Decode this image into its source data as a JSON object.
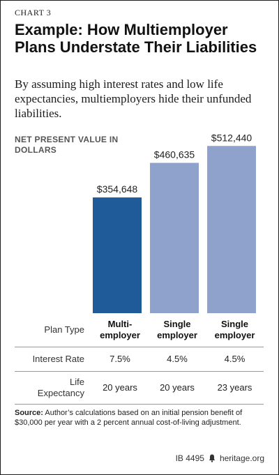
{
  "chart_label": "CHART 3",
  "title": "Example: How Multiemployer Plans Understate Their Liabilities",
  "subtitle": "By assuming high interest rates and low life expectancies, multiemployers hide their unfunded liabilities.",
  "chart_data": {
    "type": "bar",
    "ylabel": "NET PRESENT VALUE IN DOLLARS",
    "categories": [
      "Multi-employer",
      "Single employer",
      "Single employer"
    ],
    "values": [
      354648,
      460635,
      512440
    ],
    "value_labels": [
      "$354,648",
      "$460,635",
      "$512,440"
    ],
    "colors": [
      "#1f5a99",
      "#8fa2cb",
      "#8fa2cb"
    ],
    "grid": false
  },
  "table": {
    "row_labels": {
      "plan_type": "Plan Type",
      "interest_rate": "Interest Rate",
      "life_expectancy": [
        "Life",
        "Expectancy"
      ]
    },
    "columns": [
      {
        "plan_type": [
          "Multi-",
          "employer"
        ],
        "interest_rate": "7.5%",
        "life_expectancy": "20 years"
      },
      {
        "plan_type": [
          "Single",
          "employer"
        ],
        "interest_rate": "4.5%",
        "life_expectancy": "20 years"
      },
      {
        "plan_type": [
          "Single",
          "employer"
        ],
        "interest_rate": "4.5%",
        "life_expectancy": "23 years"
      }
    ]
  },
  "source": {
    "label": "Source:",
    "text": "Author’s calculations based on an initial pension benefit of $30,000 per year with a 2 percent annual cost-of-living adjustment."
  },
  "footer": {
    "id": "IB 4495",
    "site": "heritage.org"
  }
}
